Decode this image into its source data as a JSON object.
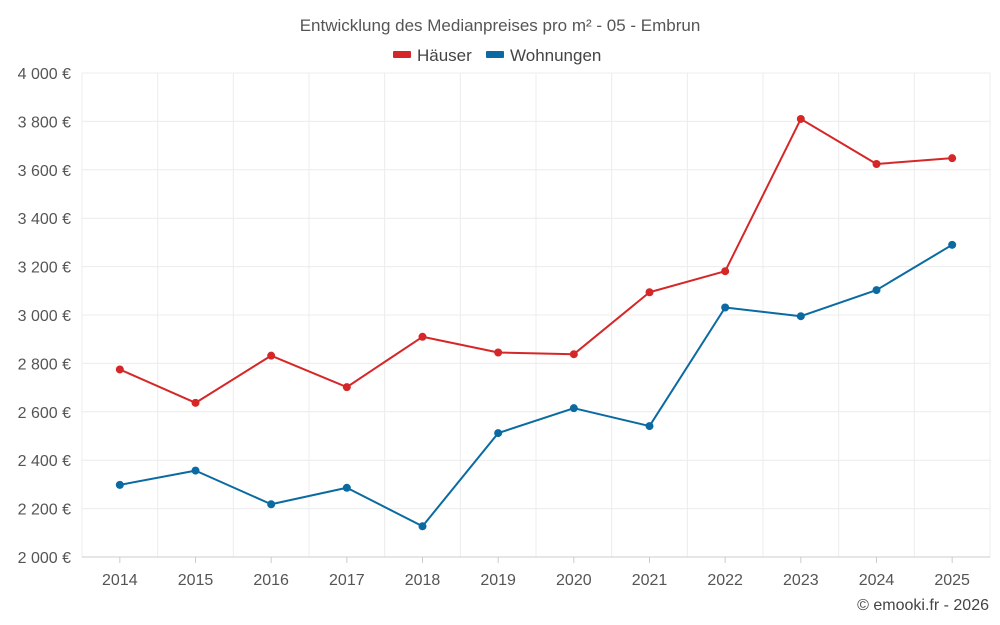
{
  "chart_data": {
    "type": "line",
    "title": "Entwicklung des Medianpreises pro m² - 05 - Embrun",
    "categories": [
      "2014",
      "2015",
      "2016",
      "2017",
      "2018",
      "2019",
      "2020",
      "2021",
      "2022",
      "2023",
      "2024",
      "2025"
    ],
    "series": [
      {
        "name": "Häuser",
        "color": "#d62728",
        "values": [
          2775,
          2637,
          2832,
          2702,
          2910,
          2845,
          2838,
          3094,
          3181,
          3810,
          3624,
          3648
        ]
      },
      {
        "name": "Wohnungen",
        "color": "#0a6aa1",
        "values": [
          2298,
          2357,
          2218,
          2286,
          2127,
          2512,
          2615,
          2541,
          3031,
          2995,
          3103,
          3290
        ]
      }
    ],
    "ylim": [
      2000,
      4000
    ],
    "yticks": [
      2000,
      2200,
      2400,
      2600,
      2800,
      3000,
      3200,
      3400,
      3600,
      3800,
      4000
    ],
    "ytick_labels": [
      "2 000 €",
      "2 200 €",
      "2 400 €",
      "2 600 €",
      "2 800 €",
      "3 000 €",
      "3 200 €",
      "3 400 €",
      "3 600 €",
      "3 800 €",
      "4 000 €"
    ],
    "xlabel": "",
    "ylabel": "",
    "grid": true,
    "legend_position": "top-center"
  },
  "credit": "© emooki.fr - 2026"
}
